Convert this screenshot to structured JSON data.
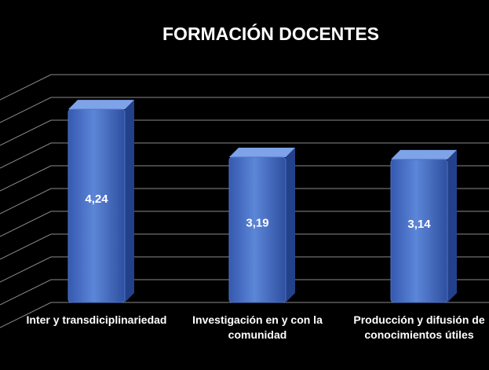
{
  "chart_data": {
    "type": "bar3d",
    "title": "FORMACIÓN DOCENTES",
    "categories": [
      "Inter y transdiciplinariedad",
      "Investigación en y con la comunidad",
      "Producción y difusión de conocimientos útiles"
    ],
    "values": [
      4.24,
      3.19,
      3.14
    ],
    "value_labels": [
      "4,24",
      "3,19",
      "3,14"
    ],
    "color": "#4a74c9",
    "ylim": [
      0,
      5
    ],
    "yticks": [
      0,
      0.5,
      1,
      1.5,
      2,
      2.5,
      3,
      3.5,
      4,
      4.5,
      5
    ],
    "grid": true
  }
}
